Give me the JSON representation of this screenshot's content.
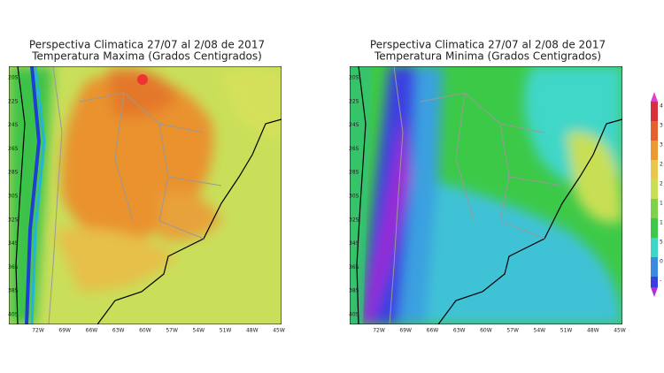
{
  "panels": [
    {
      "title": "Perspectiva Climatica 27/07 al 2/08 de 2017",
      "subtitle": "Temperatura Maxima (Grados Centigrados)",
      "lat_labels": [
        "20S",
        "22S",
        "24S",
        "26S",
        "28S",
        "30S",
        "32S",
        "34S",
        "36S",
        "38S",
        "40S"
      ],
      "lon_labels": [
        "72W",
        "69W",
        "66W",
        "63W",
        "60W",
        "57W",
        "54W",
        "51W",
        "48W",
        "45W"
      ]
    },
    {
      "title": "Perspectiva Climatica 27/07 al 2/08 de 2017",
      "subtitle": "Temperatura Minima (Grados Centigrados)",
      "lat_labels": [
        "20S",
        "22S",
        "24S",
        "26S",
        "28S",
        "30S",
        "32S",
        "34S",
        "36S",
        "38S",
        "40S"
      ],
      "lon_labels": [
        "72W",
        "69W",
        "66W",
        "63W",
        "60W",
        "57W",
        "54W",
        "51W",
        "48W",
        "45W"
      ]
    }
  ],
  "colorbar": {
    "labels": [
      "4",
      "3",
      "3",
      "2",
      "2",
      "1",
      "1",
      "5",
      "0",
      "-"
    ]
  }
}
